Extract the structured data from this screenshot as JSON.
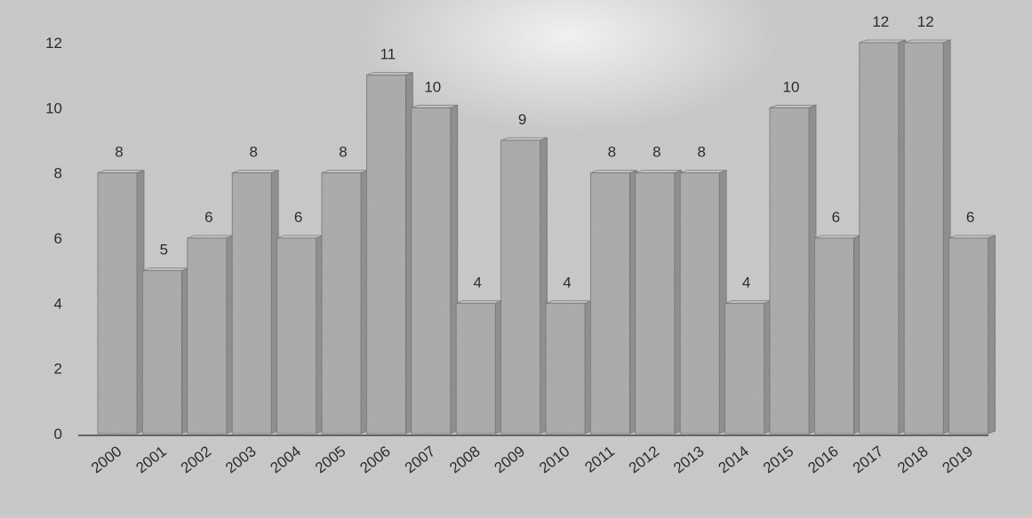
{
  "chart_data": {
    "type": "bar",
    "categories": [
      "2000",
      "2001",
      "2002",
      "2003",
      "2004",
      "2005",
      "2006",
      "2007",
      "2008",
      "2009",
      "2010",
      "2011",
      "2012",
      "2013",
      "2014",
      "2015",
      "2016",
      "2017",
      "2018",
      "2019"
    ],
    "values": [
      8,
      5,
      6,
      8,
      6,
      8,
      11,
      10,
      4,
      9,
      4,
      8,
      8,
      8,
      4,
      10,
      6,
      12,
      12,
      6
    ],
    "data_labels": [
      "8",
      "5",
      "6",
      "8",
      "6",
      "8",
      "11",
      "10",
      "4",
      "9",
      "4",
      "8",
      "8",
      "8",
      "4",
      "10",
      "6",
      "12",
      "12",
      "6"
    ],
    "y_ticks": [
      "0",
      "2",
      "4",
      "6",
      "8",
      "10",
      "12"
    ],
    "ylim": [
      0,
      12
    ],
    "grid": false,
    "legend": "none",
    "colors": {
      "background": "#c9c9c9",
      "bar_front": "#a9a9a9",
      "bar_side": "#8a8a8a",
      "bar_top": "#c4c4c4",
      "axis": "#5a5a5a",
      "text": "#1a1a1a"
    }
  }
}
